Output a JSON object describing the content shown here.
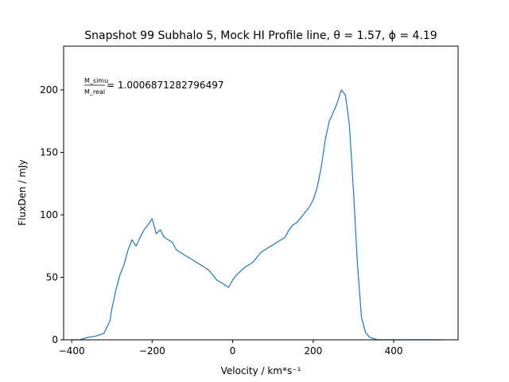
{
  "chart_data": {
    "type": "line",
    "title": "Snapshot 99 Subhalo 5, Mock HI Profile line, θ = 1.57, ϕ = 4.19",
    "xlabel": "Velocity / km*s⁻¹",
    "ylabel": "FluxDen / mJy",
    "annotation": {
      "numerator": "M_simu",
      "denominator": "M_real",
      "value_text": "= 1.0006871282796497"
    },
    "xlim": [
      -420,
      560
    ],
    "ylim": [
      0,
      235
    ],
    "xticks": [
      -400,
      -200,
      0,
      200,
      400
    ],
    "yticks": [
      0,
      50,
      100,
      150,
      200
    ],
    "grid": false,
    "series": [
      {
        "color": "#1f77b4",
        "x": [
          -400,
          -380,
          -360,
          -340,
          -320,
          -305,
          -300,
          -290,
          -280,
          -270,
          -260,
          -250,
          -240,
          -230,
          -220,
          -210,
          -200,
          -190,
          -180,
          -170,
          -160,
          -150,
          -140,
          -130,
          -120,
          -110,
          -100,
          -90,
          -80,
          -70,
          -60,
          -50,
          -40,
          -30,
          -20,
          -10,
          0,
          10,
          20,
          30,
          40,
          50,
          60,
          70,
          80,
          90,
          100,
          110,
          120,
          130,
          140,
          150,
          160,
          170,
          180,
          190,
          200,
          210,
          220,
          230,
          240,
          250,
          260,
          270,
          280,
          290,
          300,
          310,
          320,
          330,
          340,
          350,
          360,
          380,
          400,
          420,
          440,
          460,
          480,
          500,
          520
        ],
        "y": [
          0,
          0,
          2,
          3,
          5,
          15,
          25,
          40,
          52,
          60,
          72,
          80,
          75,
          82,
          88,
          92,
          97,
          85,
          88,
          82,
          80,
          78,
          72,
          70,
          68,
          66,
          64,
          62,
          60,
          58,
          56,
          52,
          48,
          46,
          44,
          42,
          48,
          52,
          55,
          58,
          60,
          62,
          66,
          70,
          72,
          74,
          76,
          78,
          80,
          82,
          88,
          92,
          94,
          98,
          102,
          106,
          112,
          122,
          138,
          160,
          175,
          182,
          190,
          200,
          196,
          172,
          120,
          60,
          18,
          6,
          2,
          1,
          0,
          0,
          0,
          0,
          0,
          0,
          0,
          0,
          0
        ]
      }
    ]
  }
}
